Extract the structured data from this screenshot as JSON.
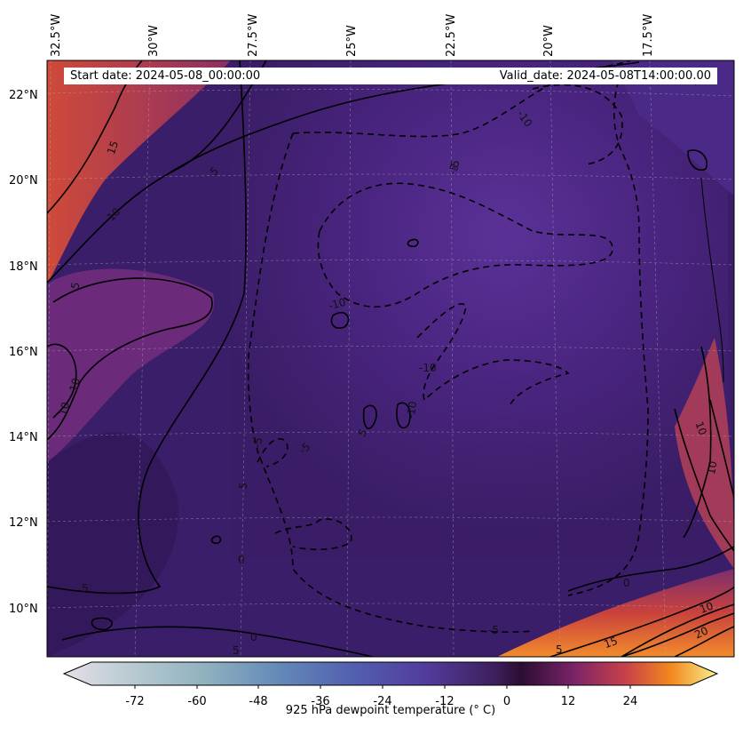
{
  "map": {
    "start_label": "Start date: 2024-05-08_00:00:00",
    "valid_label": "Valid_date: 2024-05-08T14:00:00.00",
    "lon_ticks": [
      "32.5°W",
      "30°W",
      "27.5°W",
      "25°W",
      "22.5°W",
      "20°W",
      "17.5°W"
    ],
    "lat_ticks": [
      "22°N",
      "20°N",
      "18°N",
      "16°N",
      "14°N",
      "12°N",
      "10°N"
    ],
    "contour_labels": [
      "15",
      "5",
      "10",
      "5",
      "10",
      "10",
      "5",
      "5",
      "0",
      "5",
      "0",
      "-5",
      "-5",
      "-10",
      "-5",
      "-10",
      "-10",
      "-5",
      "0",
      "5",
      "10",
      "15",
      "20",
      "10",
      "10",
      "5",
      "-5",
      "-10",
      "-5"
    ],
    "field_palette": "inferno-like dark purple to orange",
    "accent_colors": {
      "low": "#2a1149",
      "mid": "#5a2a8a",
      "warm": "#c84a3a",
      "hot": "#f5e37a"
    }
  },
  "colorbar": {
    "title": "925 hPa dewpoint temperature ($^\\circ$C)",
    "title_display": "925 hPa dewpoint temperature (° C)",
    "ticks": [
      "-72",
      "-60",
      "-48",
      "-36",
      "-24",
      "-12",
      "0",
      "12",
      "24"
    ],
    "range": [
      -84,
      36
    ]
  }
}
